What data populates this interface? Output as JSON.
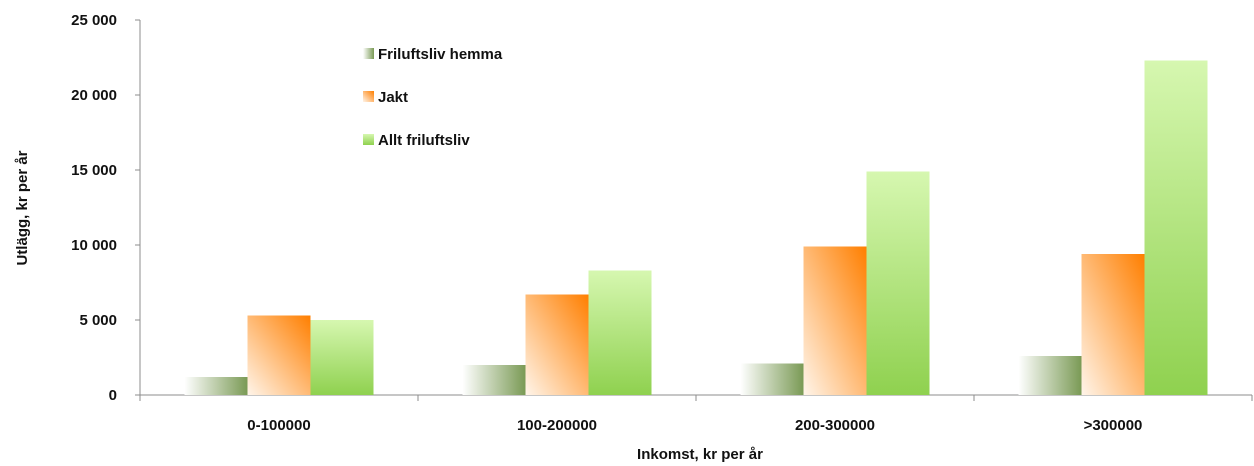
{
  "chart_data": {
    "type": "bar",
    "title": "",
    "xlabel": "Inkomst, kr per år",
    "ylabel": "Utlägg, kr per år",
    "categories": [
      "0-100000",
      "100-200000",
      "200-300000",
      ">300000"
    ],
    "series": [
      {
        "name": "Friluftsliv hemma",
        "values": [
          1200,
          2000,
          2100,
          2600
        ]
      },
      {
        "name": "Jakt",
        "values": [
          5300,
          6700,
          9900,
          9400
        ]
      },
      {
        "name": "Allt friluftsliv",
        "values": [
          5000,
          8300,
          14900,
          22300
        ]
      }
    ],
    "ylim": [
      0,
      25000
    ],
    "yticks": [
      0,
      5000,
      10000,
      15000,
      20000,
      25000
    ],
    "ytick_labels": [
      "0",
      "5 000",
      "10 000",
      "15 000",
      "20 000",
      "25 000"
    ],
    "grid": false,
    "legend_position": "top-left inside plot"
  }
}
